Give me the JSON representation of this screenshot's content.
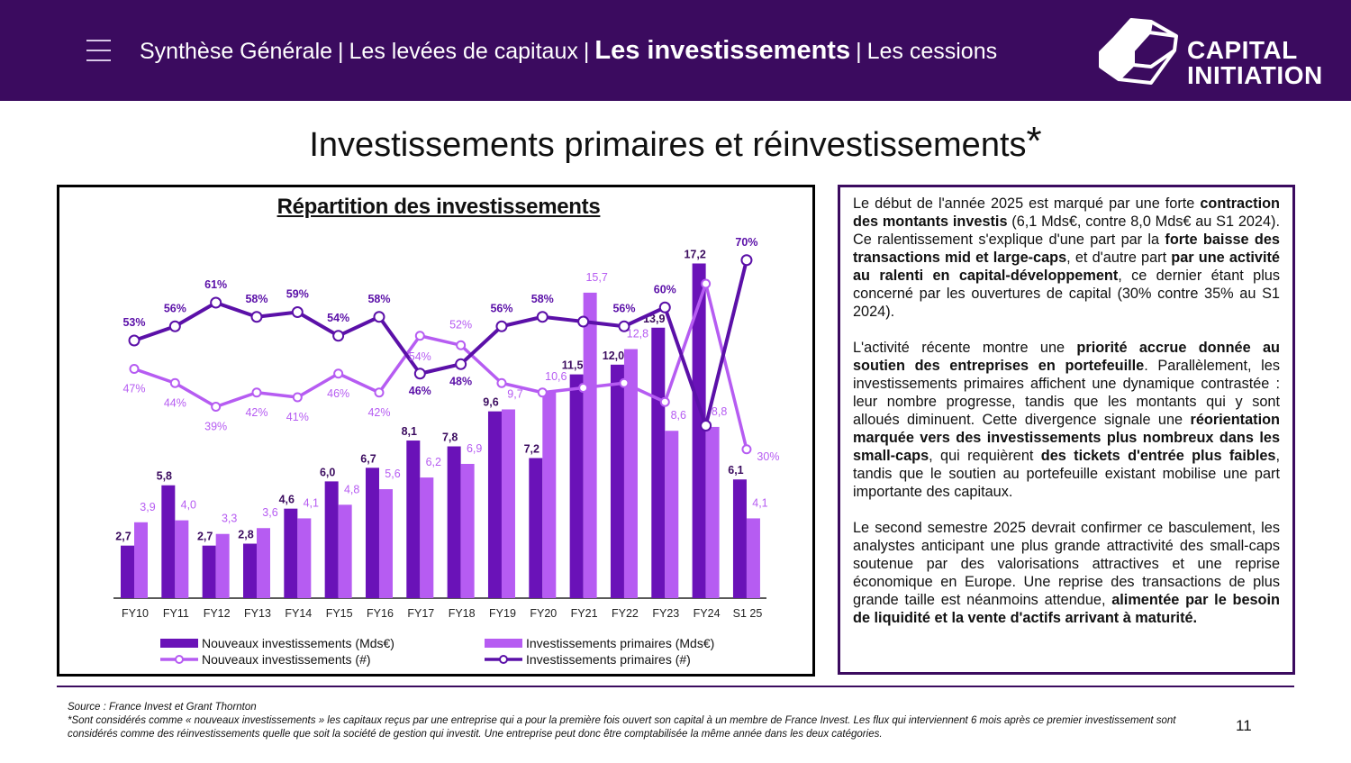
{
  "header": {
    "nav": [
      {
        "label": "Synthèse Générale",
        "active": false
      },
      {
        "label": "Les levées de capitaux",
        "active": false
      },
      {
        "label": "Les investissements",
        "active": true
      },
      {
        "label": "Les cessions",
        "active": false
      }
    ],
    "separator": "|",
    "logo_text": [
      "CAPITAL",
      "INITIATION"
    ]
  },
  "title": "Investissements primaires et réinvestissements",
  "title_mark": "*",
  "chart_data": {
    "type": "bar+line",
    "title": "Répartition des investissements",
    "categories": [
      "FY10",
      "FY11",
      "FY12",
      "FY13",
      "FY14",
      "FY15",
      "FY16",
      "FY17",
      "FY18",
      "FY19",
      "FY20",
      "FY21",
      "FY22",
      "FY23",
      "FY24",
      "S1 25"
    ],
    "bar_series": [
      {
        "name": "Nouveaux investissements (Mds€)",
        "color": "#6a12b8",
        "values": [
          2.7,
          5.8,
          2.7,
          2.8,
          4.6,
          6.0,
          6.7,
          8.1,
          7.8,
          9.6,
          7.2,
          11.5,
          12.0,
          13.9,
          17.2,
          6.1
        ],
        "labels": [
          "2,7",
          "5,8",
          "2,7",
          "2,8",
          "4,6",
          "6,0",
          "6,7",
          "8,1",
          "7,8",
          "9,6",
          "7,2",
          "11,5",
          "12,0",
          "13,9",
          "17,2",
          "6,1"
        ]
      },
      {
        "name": "Investissements primaires (Mds€)",
        "color": "#b65cf2",
        "values": [
          3.9,
          4.0,
          3.3,
          3.6,
          4.1,
          4.8,
          5.6,
          6.2,
          6.9,
          9.7,
          10.6,
          15.7,
          12.8,
          8.6,
          8.8,
          4.1
        ],
        "labels": [
          "3,9",
          "4,0",
          "3,3",
          "3,6",
          "4,1",
          "4,8",
          "5,6",
          "6,2",
          "6,9",
          "9,7",
          "10,6",
          "15,7",
          "12,8",
          "8,6",
          "8,8",
          "4,1"
        ]
      }
    ],
    "line_series": [
      {
        "name": "Nouveaux investissements (#)",
        "color": "#b65cf2",
        "unit": "%",
        "values": [
          47,
          44,
          39,
          42,
          41,
          46,
          42,
          54,
          52,
          44,
          42,
          43,
          44,
          40,
          65,
          30
        ],
        "labels": [
          "47%",
          "44%",
          "39%",
          "42%",
          "41%",
          "46%",
          "42%",
          "54%",
          "52%",
          null,
          null,
          null,
          null,
          null,
          null,
          "30%"
        ]
      },
      {
        "name": "Investissements primaires (#)",
        "color": "#5b10a8",
        "unit": "%",
        "values": [
          53,
          56,
          61,
          58,
          59,
          54,
          58,
          46,
          48,
          56,
          58,
          57,
          56,
          60,
          35,
          70
        ],
        "labels": [
          "53%",
          "56%",
          "61%",
          "58%",
          "59%",
          "54%",
          "58%",
          "46%",
          "48%",
          "56%",
          "58%",
          null,
          "56%",
          "60%",
          null,
          "70%"
        ]
      }
    ],
    "legend_position": "bottom",
    "grid": false
  },
  "text": [
    [
      {
        "t": "Le début de l'année 2025 est marqué par une forte ",
        "b": false
      },
      {
        "t": "contraction des montants investis",
        "b": true
      },
      {
        "t": " (6,1 Mds€, contre 8,0 Mds€ au S1 2024). Ce ralentissement s'explique d'une part par la ",
        "b": false
      },
      {
        "t": "forte baisse des transactions mid et large-caps",
        "b": true
      },
      {
        "t": ", et d'autre part ",
        "b": false
      },
      {
        "t": "par une activité au ralenti en capital-développement",
        "b": true
      },
      {
        "t": ", ce dernier étant plus concerné par les ouvertures de capital (30% contre 35% au S1 2024).",
        "b": false
      }
    ],
    [
      {
        "t": "L'activité récente montre une ",
        "b": false
      },
      {
        "t": "priorité accrue donnée au soutien des entreprises en portefeuille",
        "b": true
      },
      {
        "t": ". Parallèlement, les investissements primaires affichent une dynamique contrastée : leur nombre progresse, tandis que les montants qui y sont alloués diminuent. Cette divergence signale une ",
        "b": false
      },
      {
        "t": "réorientation marquée vers des investissements plus nombreux dans les small-caps",
        "b": true
      },
      {
        "t": ", qui requièrent ",
        "b": false
      },
      {
        "t": "des tickets d'entrée plus faibles",
        "b": true
      },
      {
        "t": ", tandis que le soutien au portefeuille existant mobilise une part importante des capitaux.",
        "b": false
      }
    ],
    [
      {
        "t": "Le second semestre 2025 devrait confirmer ce basculement, les analystes anticipant une plus grande attractivité des small-caps soutenue par des valorisations attractives et une reprise économique en Europe. Une reprise des transactions de plus grande taille est néanmoins attendue, ",
        "b": false
      },
      {
        "t": "alimentée par le besoin de liquidité et la vente d'actifs arrivant à maturité.",
        "b": true
      }
    ]
  ],
  "footer": {
    "source": "Source : France Invest et Grant Thornton",
    "note": "*Sont considérés comme « nouveaux investissements » les capitaux reçus par une entreprise qui a pour la première fois ouvert son capital à un membre de France Invest. Les flux qui interviennent 6 mois après ce premier investissement sont considérés comme des réinvestissements quelle que soit la société de gestion qui investit. Une entreprise peut donc être comptabilisée la même année dans les deux catégories.",
    "page": "11"
  }
}
